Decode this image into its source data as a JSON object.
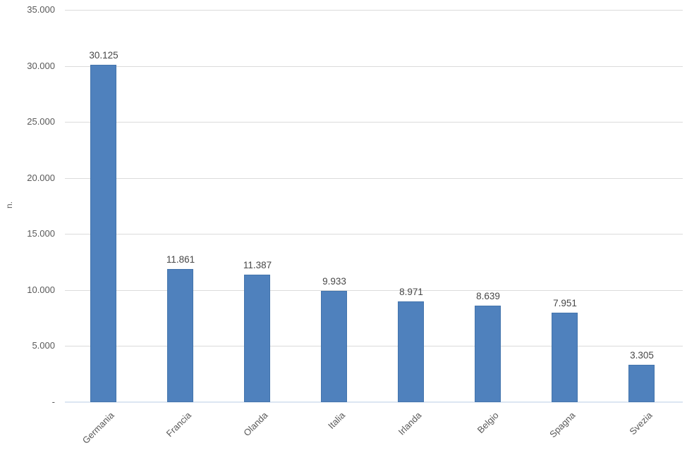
{
  "chart_data": {
    "type": "bar",
    "title": "",
    "xlabel": "",
    "ylabel": "n.",
    "categories": [
      "Germania",
      "Francia",
      "Olanda",
      "Italia",
      "Irlanda",
      "Belgio",
      "Spagna",
      "Svezia"
    ],
    "values": [
      30125,
      11861,
      11387,
      9933,
      8971,
      8639,
      7951,
      3305
    ],
    "value_labels": [
      "30.125",
      "11.861",
      "11.387",
      "9.933",
      "8.971",
      "8.639",
      "7.951",
      "3.305"
    ],
    "ylim": [
      0,
      35000
    ],
    "ytick_interval": 5000,
    "ytick_labels": [
      "35.000",
      "30.000",
      "25.000",
      "20.000",
      "15.000",
      "10.000",
      "5.000",
      "-"
    ],
    "grid": true,
    "legend": false,
    "bar_color": "#4F81BD",
    "bar_border_color": "#4374AC",
    "gridline_color": "#DBDBDB",
    "zero_line_color": "#DCE6F2",
    "tick_label_color": "#595959",
    "value_label_color": "#474747"
  }
}
